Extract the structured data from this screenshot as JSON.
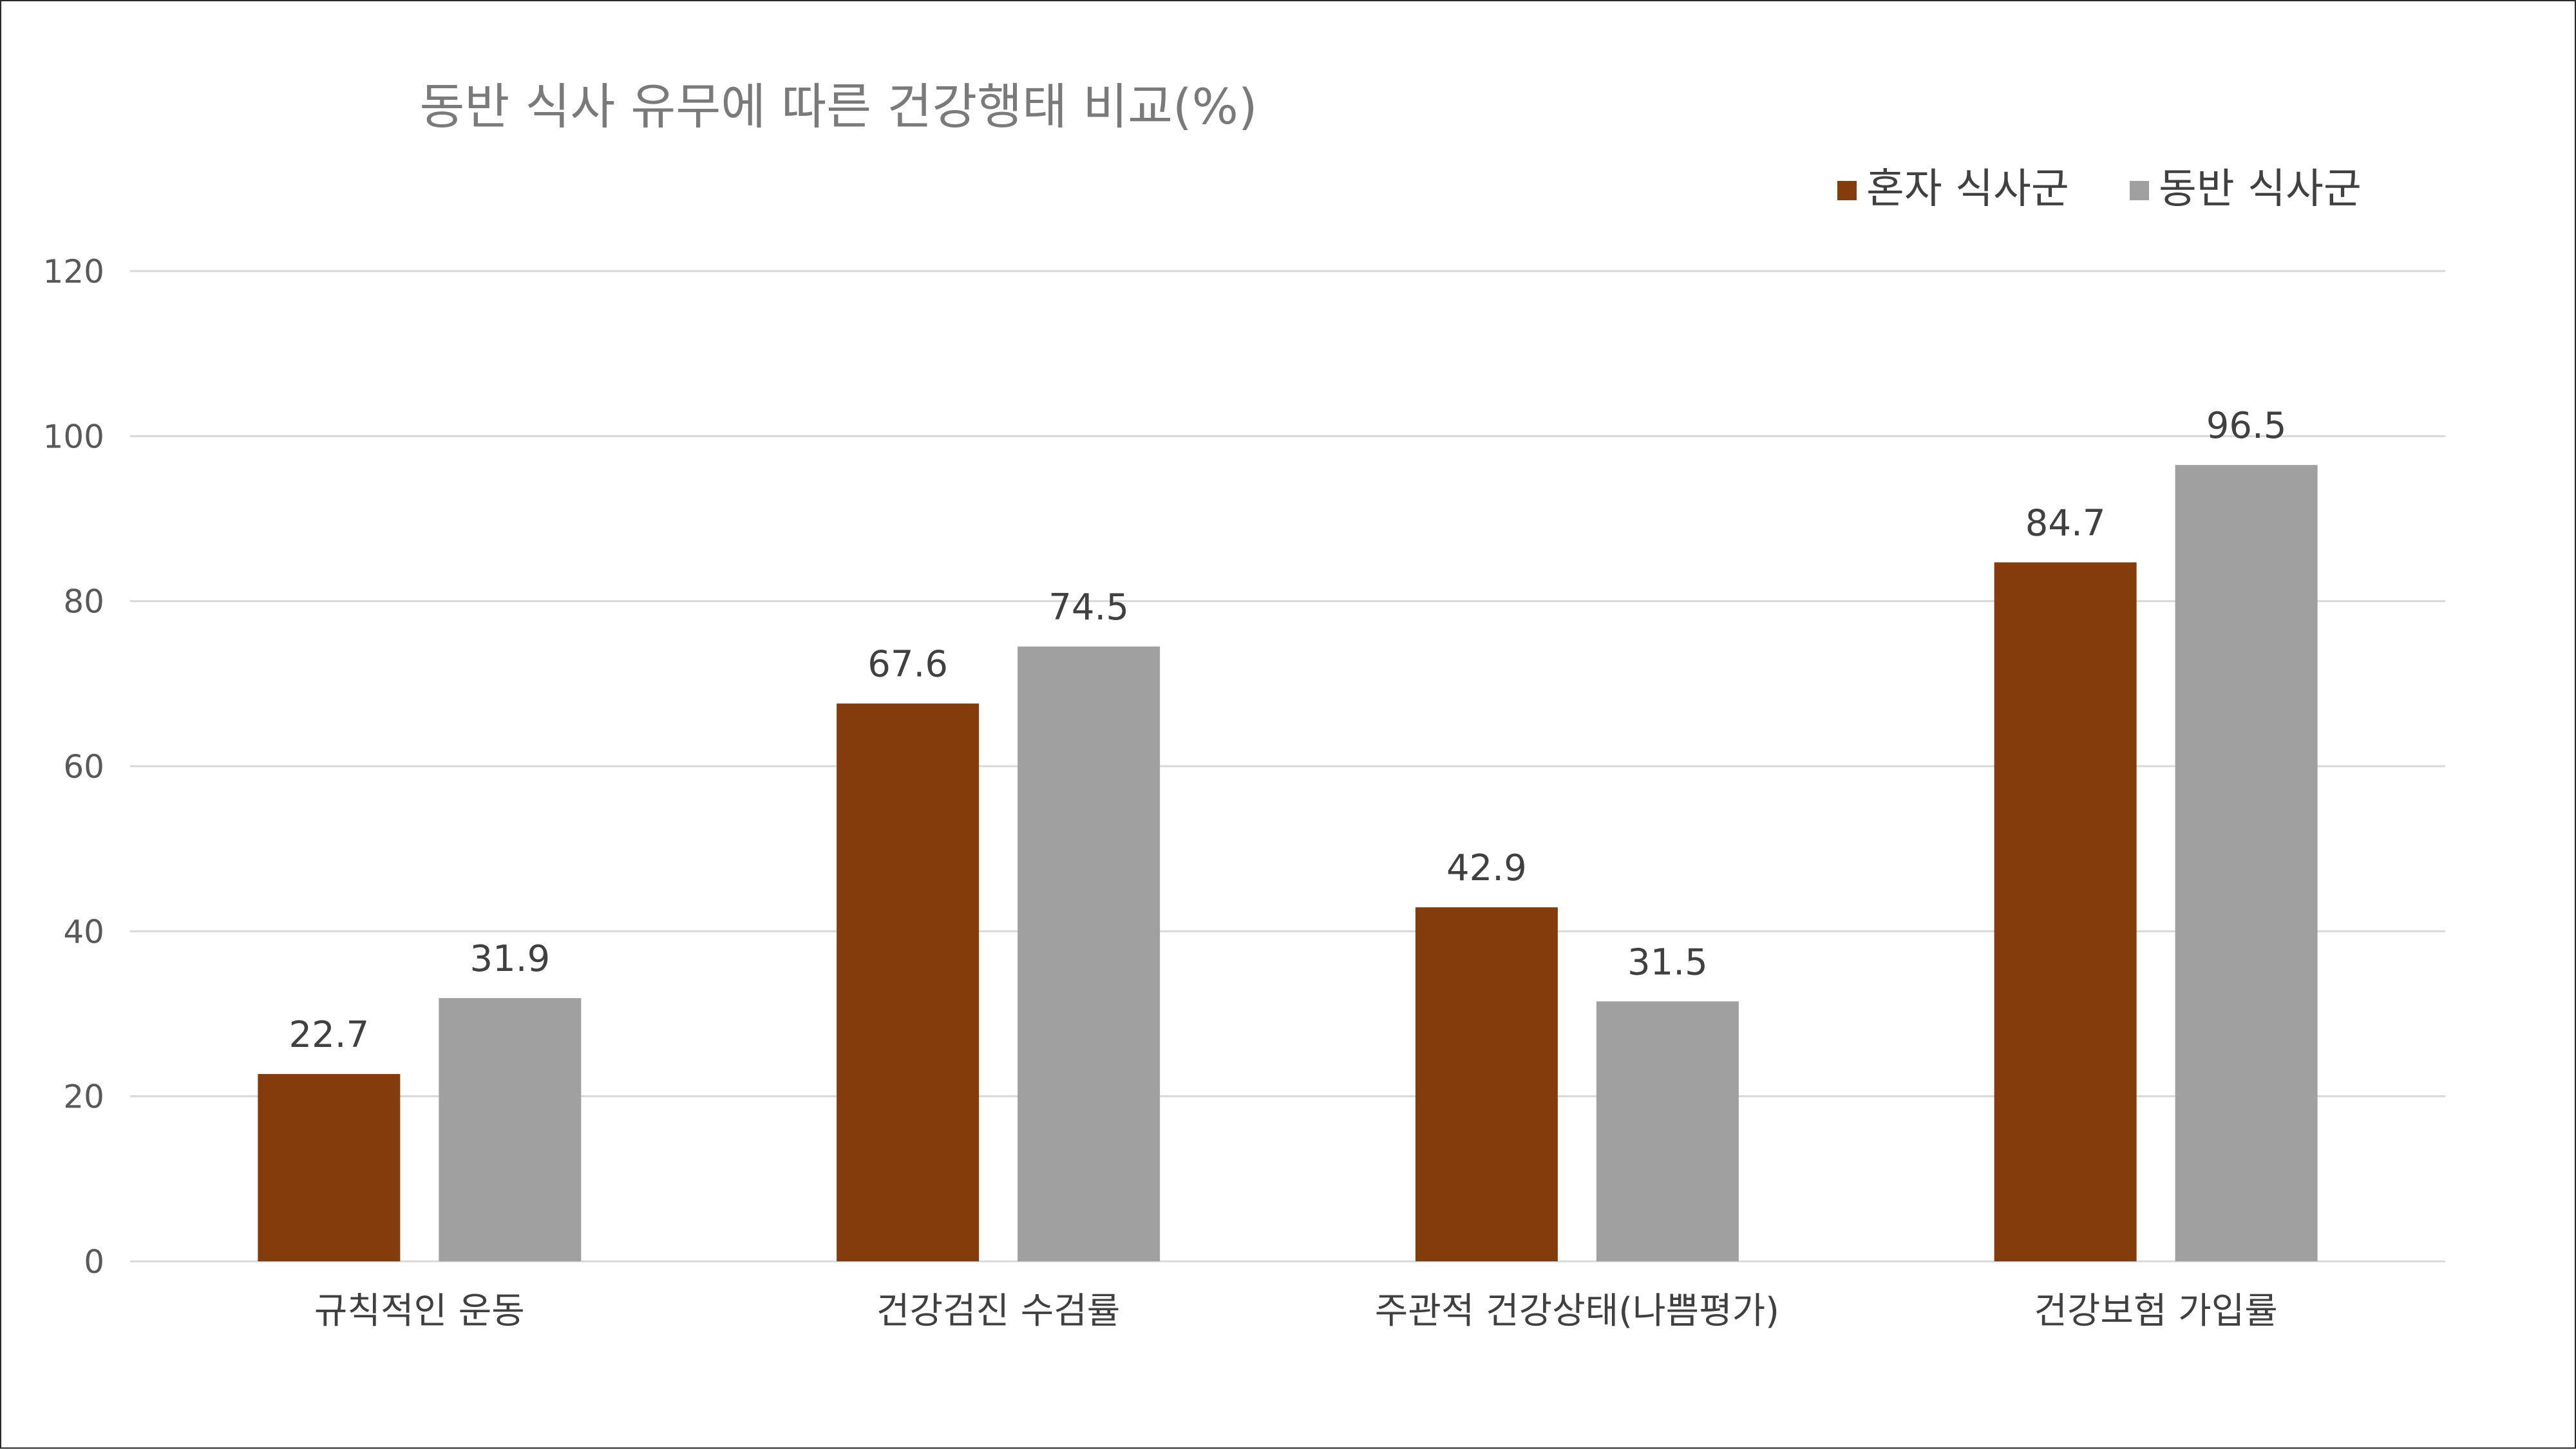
{
  "chart_data": {
    "type": "bar",
    "title": "동반 식사 유무에 따른 건강행태 비교(%)",
    "categories": [
      "규칙적인 운동",
      "건강검진 수검률",
      "주관적 건강상태(나쁨평가)",
      "건강보험 가입률"
    ],
    "series": [
      {
        "name": "혼자 식사군",
        "color": "#843C0C",
        "values": [
          22.7,
          67.6,
          42.9,
          84.7
        ]
      },
      {
        "name": "동반 식사군",
        "color": "#A0A0A0",
        "values": [
          31.9,
          74.5,
          31.5,
          96.5
        ]
      }
    ],
    "ylim": [
      0,
      120
    ],
    "yticks": [
      "0",
      "20",
      "40",
      "60",
      "80",
      "100",
      "120"
    ],
    "grid": true,
    "legend_position": "top-right",
    "xlabel": "",
    "ylabel": ""
  }
}
